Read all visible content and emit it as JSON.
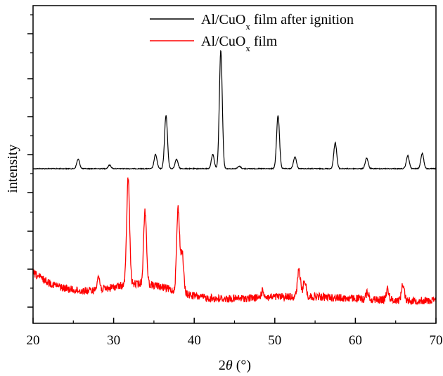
{
  "chart_data": {
    "type": "line",
    "xlabel": "2θ (°)",
    "xlabel_symbol": "θ",
    "ylabel": "intensity",
    "xlim": [
      20,
      70
    ],
    "x_ticks": [
      20,
      30,
      40,
      50,
      60,
      70
    ],
    "y_tick_labels": "none",
    "grid": false,
    "legend_position": "top-right",
    "series": [
      {
        "name": "Al/CuOx film after ignition",
        "color": "#000000",
        "offset": 1.0,
        "peaks": [
          {
            "x": 25.6,
            "y": 0.08
          },
          {
            "x": 29.5,
            "y": 0.03
          },
          {
            "x": 35.2,
            "y": 0.12
          },
          {
            "x": 36.5,
            "y": 0.45
          },
          {
            "x": 37.8,
            "y": 0.08
          },
          {
            "x": 42.3,
            "y": 0.12
          },
          {
            "x": 43.3,
            "y": 1.0
          },
          {
            "x": 45.6,
            "y": 0.02
          },
          {
            "x": 50.4,
            "y": 0.45
          },
          {
            "x": 52.5,
            "y": 0.1
          },
          {
            "x": 57.5,
            "y": 0.22
          },
          {
            "x": 61.4,
            "y": 0.09
          },
          {
            "x": 66.5,
            "y": 0.11
          },
          {
            "x": 68.3,
            "y": 0.13
          }
        ]
      },
      {
        "name": "Al/CuOx film",
        "color": "#ff0000",
        "offset": 0.0,
        "peaks": [
          {
            "x": 28.1,
            "y": 0.1
          },
          {
            "x": 31.8,
            "y": 0.8
          },
          {
            "x": 33.9,
            "y": 0.55
          },
          {
            "x": 38.0,
            "y": 0.62
          },
          {
            "x": 38.5,
            "y": 0.3
          },
          {
            "x": 48.5,
            "y": 0.05
          },
          {
            "x": 53.0,
            "y": 0.2
          },
          {
            "x": 53.7,
            "y": 0.12
          },
          {
            "x": 61.5,
            "y": 0.05
          },
          {
            "x": 64.0,
            "y": 0.08
          },
          {
            "x": 65.9,
            "y": 0.12
          }
        ]
      }
    ]
  },
  "legend": {
    "entries": [
      {
        "prefix": "Al/CuO",
        "subscript": "x",
        "suffix": " film after ignition",
        "color": "#000000"
      },
      {
        "prefix": "Al/CuO",
        "subscript": "x",
        "suffix": " film",
        "color": "#ff0000"
      }
    ]
  }
}
